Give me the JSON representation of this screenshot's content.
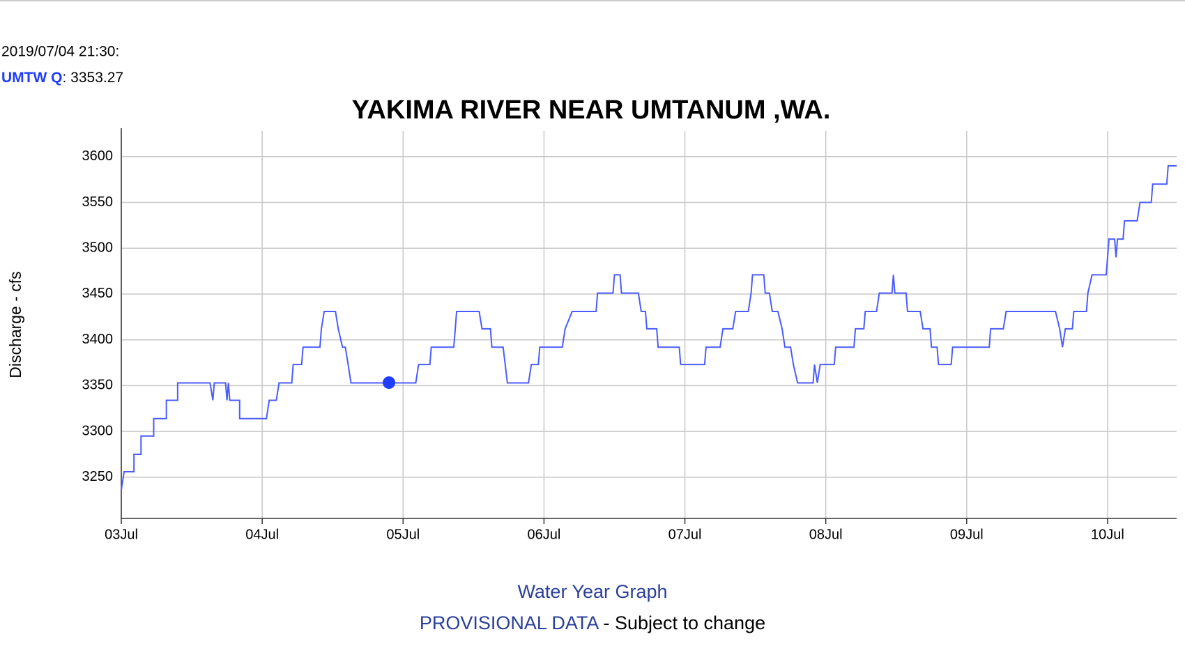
{
  "readout": {
    "time": "2019/07/04 21:30:",
    "name": "UMTW Q",
    "value": 3353.27,
    "value_label": ": 3353.27",
    "x": 1.9
  },
  "chart_data": {
    "type": "line",
    "title": "YAKIMA RIVER NEAR UMTANUM ,WA.",
    "y_label": "Discharge - cfs",
    "xlim": [
      0,
      7.49
    ],
    "ylim": [
      3205,
      3628
    ],
    "xticks": [
      {
        "value": 0,
        "label": "03Jul"
      },
      {
        "value": 1,
        "label": "04Jul"
      },
      {
        "value": 2,
        "label": "05Jul"
      },
      {
        "value": 3,
        "label": "06Jul"
      },
      {
        "value": 4,
        "label": "07Jul"
      },
      {
        "value": 5,
        "label": "08Jul"
      },
      {
        "value": 6,
        "label": "09Jul"
      },
      {
        "value": 7,
        "label": "10Jul"
      }
    ],
    "yticks": [
      3250,
      3300,
      3350,
      3400,
      3450,
      3500,
      3550,
      3600
    ],
    "grid": true,
    "series": [
      {
        "name": "UMTW Q",
        "color": "#4a5cff",
        "x": [
          0,
          0.02,
          0.09,
          0.09,
          0.14,
          0.14,
          0.23,
          0.23,
          0.32,
          0.32,
          0.4,
          0.4,
          0.63,
          0.65,
          0.66,
          0.74,
          0.75,
          0.76,
          0.77,
          0.84,
          0.84,
          1.03,
          1.05,
          1.1,
          1.12,
          1.21,
          1.22,
          1.28,
          1.29,
          1.41,
          1.42,
          1.44,
          1.52,
          1.54,
          1.57,
          1.59,
          1.61,
          1.63,
          1.65,
          2.09,
          2.11,
          2.19,
          2.2,
          2.36,
          2.38,
          2.54,
          2.56,
          2.62,
          2.63,
          2.71,
          2.74,
          2.89,
          2.91,
          2.96,
          2.97,
          3.13,
          3.15,
          3.2,
          3.37,
          3.38,
          3.49,
          3.5,
          3.54,
          3.55,
          3.67,
          3.69,
          3.72,
          3.73,
          3.8,
          3.81,
          3.96,
          3.97,
          4.14,
          4.15,
          4.25,
          4.27,
          4.34,
          4.36,
          4.45,
          4.47,
          4.48,
          4.56,
          4.57,
          4.6,
          4.62,
          4.66,
          4.69,
          4.71,
          4.75,
          4.77,
          4.8,
          4.91,
          4.92,
          4.94,
          4.96,
          5.06,
          5.07,
          5.2,
          5.21,
          5.27,
          5.28,
          5.36,
          5.38,
          5.47,
          5.48,
          5.49,
          5.57,
          5.58,
          5.67,
          5.69,
          5.74,
          5.75,
          5.79,
          5.8,
          5.89,
          5.9,
          6.16,
          6.17,
          6.26,
          6.28,
          6.63,
          6.66,
          6.68,
          6.7,
          6.75,
          6.76,
          6.85,
          6.86,
          6.89,
          6.99,
          7.0,
          7.01,
          7.05,
          7.06,
          7.07,
          7.11,
          7.12,
          7.21,
          7.23,
          7.31,
          7.32,
          7.42,
          7.43,
          7.49
        ],
        "values": [
          3236,
          3256,
          3256,
          3275,
          3275,
          3295,
          3295,
          3314,
          3314,
          3334,
          3334,
          3353,
          3353,
          3334,
          3353,
          3353,
          3334,
          3353,
          3334,
          3334,
          3314,
          3314,
          3334,
          3334,
          3353,
          3353,
          3373,
          3373,
          3392,
          3392,
          3412,
          3431,
          3431,
          3412,
          3392,
          3392,
          3373,
          3353,
          3353,
          3353,
          3373,
          3373,
          3392,
          3392,
          3431,
          3431,
          3412,
          3412,
          3392,
          3392,
          3353,
          3353,
          3373,
          3373,
          3392,
          3392,
          3412,
          3431,
          3431,
          3451,
          3451,
          3471,
          3471,
          3451,
          3451,
          3431,
          3431,
          3412,
          3412,
          3392,
          3392,
          3373,
          3373,
          3392,
          3392,
          3412,
          3412,
          3431,
          3431,
          3451,
          3471,
          3471,
          3451,
          3451,
          3431,
          3431,
          3412,
          3392,
          3392,
          3373,
          3353,
          3353,
          3373,
          3353,
          3373,
          3373,
          3392,
          3392,
          3412,
          3412,
          3431,
          3431,
          3451,
          3451,
          3471,
          3451,
          3451,
          3431,
          3431,
          3412,
          3412,
          3392,
          3392,
          3373,
          3373,
          3392,
          3392,
          3412,
          3412,
          3431,
          3431,
          3412,
          3392,
          3412,
          3412,
          3431,
          3431,
          3451,
          3471,
          3471,
          3490,
          3510,
          3510,
          3490,
          3510,
          3510,
          3530,
          3530,
          3550,
          3550,
          3570,
          3570,
          3590,
          3590
        ]
      }
    ]
  },
  "footer": {
    "link": "Water Year Graph",
    "notice": "PROVISIONAL DATA",
    "notice_rest": " - Subject to change"
  }
}
